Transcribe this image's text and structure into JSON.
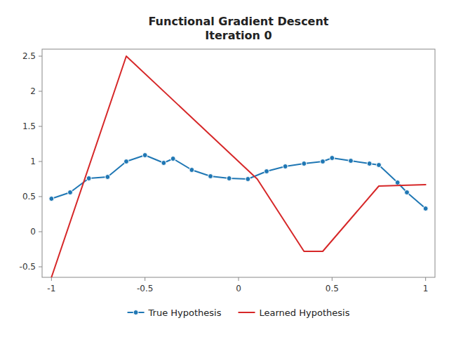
{
  "chart_data": {
    "type": "line",
    "title": "Functional Gradient Descent\nIteration 0",
    "series": [
      {
        "name": "True Hypothesis",
        "color": "#1f77b4",
        "marker": "circle",
        "x": [
          -1.0,
          -0.9,
          -0.8,
          -0.7,
          -0.6,
          -0.5,
          -0.4,
          -0.35,
          -0.25,
          -0.15,
          -0.05,
          0.05,
          0.15,
          0.25,
          0.35,
          0.45,
          0.5,
          0.6,
          0.7,
          0.75,
          0.85,
          0.9,
          1.0
        ],
        "values": [
          0.47,
          0.56,
          0.76,
          0.78,
          1.0,
          1.09,
          0.98,
          1.04,
          0.88,
          0.79,
          0.76,
          0.75,
          0.86,
          0.93,
          0.97,
          1.0,
          1.05,
          1.01,
          0.97,
          0.95,
          0.7,
          0.56,
          0.33
        ]
      },
      {
        "name": "Learned Hypothesis",
        "color": "#d62728",
        "x": [
          -1.0,
          -0.6,
          0.1,
          0.35,
          0.45,
          0.75,
          1.0
        ],
        "values": [
          -0.65,
          2.5,
          0.75,
          -0.28,
          -0.28,
          0.65,
          0.67
        ]
      }
    ],
    "xlim": [
      -1.05,
      1.05
    ],
    "xticks": [
      -1,
      -0.5,
      0,
      0.5,
      1
    ],
    "ylim": [
      -0.65,
      2.6
    ],
    "yticks": [
      -0.5,
      0,
      0.5,
      1,
      1.5,
      2,
      2.5
    ],
    "legend": "lower center"
  }
}
